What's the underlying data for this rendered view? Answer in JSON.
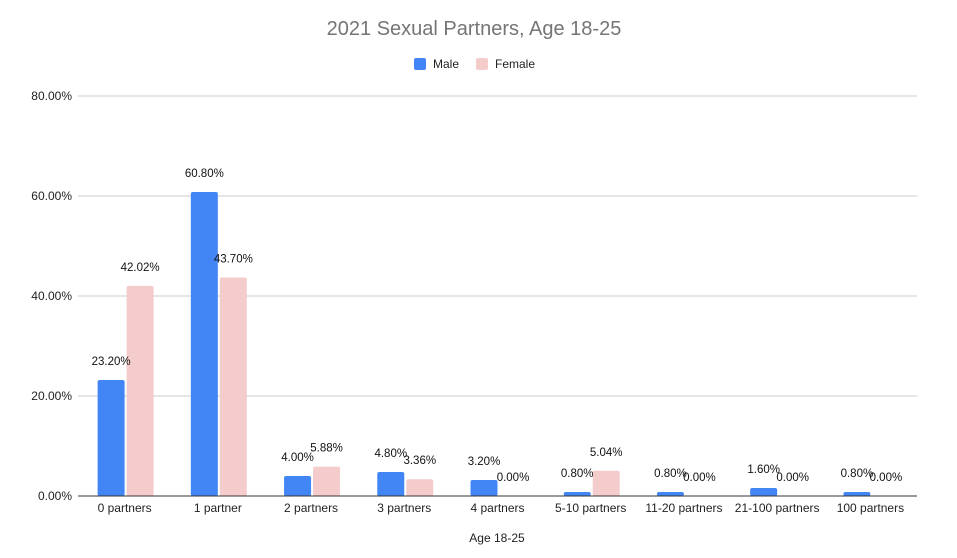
{
  "chart_data": {
    "type": "bar",
    "title": "2021 Sexual Partners, Age 18-25",
    "xlabel": "Age 18-25",
    "ylabel": "",
    "ylim": [
      0,
      80
    ],
    "yticks": [
      "0.00%",
      "20.00%",
      "40.00%",
      "60.00%",
      "80.00%"
    ],
    "ytick_values": [
      0,
      20,
      40,
      60,
      80
    ],
    "grid": true,
    "legend_position": "top",
    "categories": [
      "0 partners",
      "1 partner",
      "2 partners",
      "3 partners",
      "4 partners",
      "5-10 partners",
      "11-20 partners",
      "21-100 partners",
      "100 partners"
    ],
    "series": [
      {
        "name": "Male",
        "color": "#4285f4",
        "values": [
          23.2,
          60.8,
          4.0,
          4.8,
          3.2,
          0.8,
          0.8,
          1.6,
          0.8
        ],
        "labels": [
          "23.20%",
          "60.80%",
          "4.00%",
          "4.80%",
          "3.20%",
          "0.80%",
          "0.80%",
          "1.60%",
          "0.80%"
        ]
      },
      {
        "name": "Female",
        "color": "#f4cccc",
        "values": [
          42.02,
          43.7,
          5.88,
          3.36,
          0.0,
          5.04,
          0.0,
          0.0,
          0.0
        ],
        "labels": [
          "42.02%",
          "43.70%",
          "5.88%",
          "3.36%",
          "0.00%",
          "5.04%",
          "0.00%",
          "0.00%",
          "0.00%"
        ]
      }
    ]
  }
}
